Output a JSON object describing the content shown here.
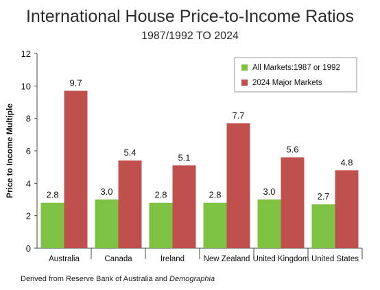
{
  "chart_data": {
    "type": "bar",
    "title": "International House Price-to-Income Ratios",
    "subtitle": "1987/1992 TO 2024",
    "xlabel": "",
    "ylabel": "Price to Income Multiple",
    "ylim": [
      0,
      12
    ],
    "yticks": [
      "0",
      "2",
      "4",
      "6",
      "8",
      "10",
      "12"
    ],
    "grid": false,
    "legend_position": "top-right",
    "categories": [
      "Australia",
      "Canada",
      "Ireland",
      "New Zealand",
      "United Kingdom",
      "United States"
    ],
    "series": [
      {
        "name": "All Markets:1987 or 1992",
        "color": "#7dc242",
        "values": [
          2.8,
          3.0,
          2.8,
          2.8,
          3.0,
          2.7
        ],
        "labels": [
          "2.8",
          "3.0",
          "2.8",
          "2.8",
          "3.0",
          "2.7"
        ]
      },
      {
        "name": "2024 Major Markets",
        "color": "#c0504d",
        "values": [
          9.7,
          5.4,
          5.1,
          7.7,
          5.6,
          4.8
        ],
        "labels": [
          "9.7",
          "5.4",
          "5.1",
          "7.7",
          "5.6",
          "4.8"
        ]
      }
    ]
  },
  "source": {
    "prefix": "Derived from Reserve Bank of Australia and ",
    "italic": "Demographia"
  }
}
